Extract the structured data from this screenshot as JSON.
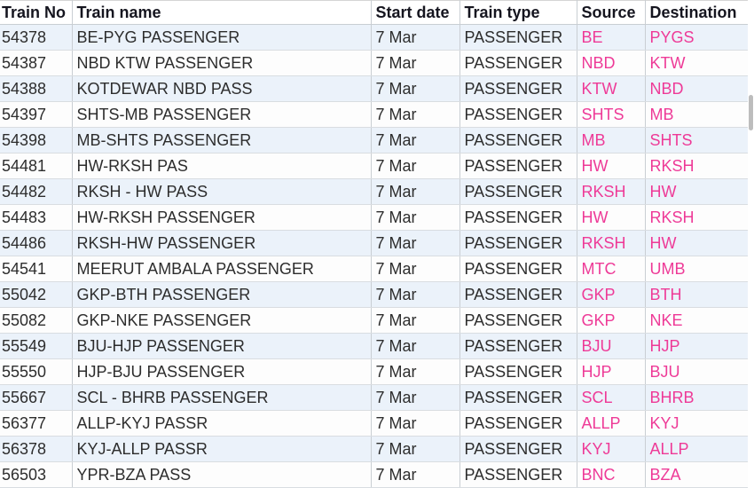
{
  "table": {
    "columns": [
      {
        "key": "no",
        "label": "Train No"
      },
      {
        "key": "name",
        "label": "Train name"
      },
      {
        "key": "date",
        "label": "Start date"
      },
      {
        "key": "type",
        "label": "Train type"
      },
      {
        "key": "source",
        "label": "Source"
      },
      {
        "key": "dest",
        "label": "Destination"
      }
    ],
    "rows": [
      {
        "no": "54378",
        "name": "BE-PYG PASSENGER",
        "date": "7 Mar",
        "type": "PASSENGER",
        "source": "BE",
        "dest": "PYGS"
      },
      {
        "no": "54387",
        "name": "NBD KTW PASSENGER",
        "date": "7 Mar",
        "type": "PASSENGER",
        "source": "NBD",
        "dest": "KTW"
      },
      {
        "no": "54388",
        "name": "KOTDEWAR NBD PASS",
        "date": "7 Mar",
        "type": "PASSENGER",
        "source": "KTW",
        "dest": "NBD"
      },
      {
        "no": "54397",
        "name": "SHTS-MB PASSENGER",
        "date": "7 Mar",
        "type": "PASSENGER",
        "source": "SHTS",
        "dest": "MB"
      },
      {
        "no": "54398",
        "name": "MB-SHTS PASSENGER",
        "date": "7 Mar",
        "type": "PASSENGER",
        "source": "MB",
        "dest": "SHTS"
      },
      {
        "no": "54481",
        "name": "HW-RKSH PAS",
        "date": "7 Mar",
        "type": "PASSENGER",
        "source": "HW",
        "dest": "RKSH"
      },
      {
        "no": "54482",
        "name": "RKSH - HW PASS",
        "date": "7 Mar",
        "type": "PASSENGER",
        "source": "RKSH",
        "dest": "HW"
      },
      {
        "no": "54483",
        "name": "HW-RKSH PASSENGER",
        "date": "7 Mar",
        "type": "PASSENGER",
        "source": "HW",
        "dest": "RKSH"
      },
      {
        "no": "54486",
        "name": "RKSH-HW PASSENGER",
        "date": "7 Mar",
        "type": "PASSENGER",
        "source": "RKSH",
        "dest": "HW"
      },
      {
        "no": "54541",
        "name": "MEERUT AMBALA PASSENGER",
        "date": "7 Mar",
        "type": "PASSENGER",
        "source": "MTC",
        "dest": "UMB"
      },
      {
        "no": "55042",
        "name": "GKP-BTH PASSENGER",
        "date": "7 Mar",
        "type": "PASSENGER",
        "source": "GKP",
        "dest": "BTH"
      },
      {
        "no": "55082",
        "name": "GKP-NKE PASSENGER",
        "date": "7 Mar",
        "type": "PASSENGER",
        "source": "GKP",
        "dest": "NKE"
      },
      {
        "no": "55549",
        "name": "BJU-HJP PASSENGER",
        "date": "7 Mar",
        "type": "PASSENGER",
        "source": "BJU",
        "dest": "HJP"
      },
      {
        "no": "55550",
        "name": "HJP-BJU PASSENGER",
        "date": "7 Mar",
        "type": "PASSENGER",
        "source": "HJP",
        "dest": "BJU"
      },
      {
        "no": "55667",
        "name": "SCL - BHRB PASSENGER",
        "date": "7 Mar",
        "type": "PASSENGER",
        "source": "SCL",
        "dest": "BHRB"
      },
      {
        "no": "56377",
        "name": "ALLP-KYJ PASSR",
        "date": "7 Mar",
        "type": "PASSENGER",
        "source": "ALLP",
        "dest": "KYJ"
      },
      {
        "no": "56378",
        "name": "KYJ-ALLP PASSR",
        "date": "7 Mar",
        "type": "PASSENGER",
        "source": "KYJ",
        "dest": "ALLP"
      },
      {
        "no": "56503",
        "name": "YPR-BZA PASS",
        "date": "7 Mar",
        "type": "PASSENGER",
        "source": "BNC",
        "dest": "BZA"
      }
    ]
  },
  "colors": {
    "link_pink": "#ee3a97",
    "row_alt_blue": "#ebf2fa",
    "header_text": "#15151f",
    "cell_text": "#2d2d2d",
    "grid_vertical": "#c9ced3",
    "grid_horizontal": "#d9dde1",
    "scrollbar_thumb": "#bdbdbd"
  }
}
